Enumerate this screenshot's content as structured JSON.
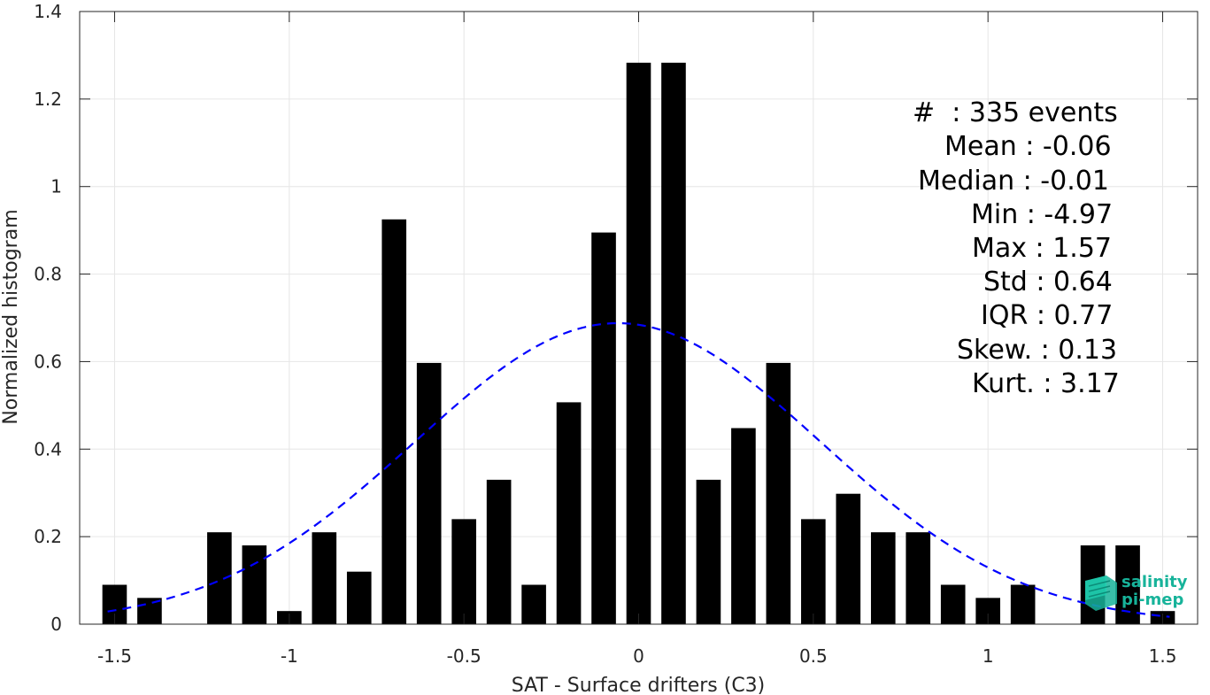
{
  "chart_data": {
    "type": "bar",
    "xlabel": "SAT - Surface drifters (C3)",
    "ylabel": "Normalized histogram",
    "xlim": [
      -1.6,
      1.6
    ],
    "ylim": [
      0,
      1.4
    ],
    "xticks": [
      "-1.5",
      "-1",
      "-0.5",
      "0",
      "0.5",
      "1",
      "1.5"
    ],
    "xtick_values": [
      -1.5,
      -1,
      -0.5,
      0,
      0.5,
      1,
      1.5
    ],
    "yticks": [
      "0",
      "0.2",
      "0.4",
      "0.6",
      "0.8",
      "1",
      "1.2",
      "1.4"
    ],
    "ytick_values": [
      0,
      0.2,
      0.4,
      0.6,
      0.8,
      1.0,
      1.2,
      1.4
    ],
    "grid": true,
    "bar_color": "#000000",
    "bars": [
      {
        "x": -1.5,
        "value": 0.09
      },
      {
        "x": -1.4,
        "value": 0.06
      },
      {
        "x": -1.3,
        "value": 0.0
      },
      {
        "x": -1.2,
        "value": 0.21
      },
      {
        "x": -1.1,
        "value": 0.18
      },
      {
        "x": -1.0,
        "value": 0.03
      },
      {
        "x": -0.9,
        "value": 0.21
      },
      {
        "x": -0.8,
        "value": 0.12
      },
      {
        "x": -0.7,
        "value": 0.925
      },
      {
        "x": -0.6,
        "value": 0.597
      },
      {
        "x": -0.5,
        "value": 0.24
      },
      {
        "x": -0.4,
        "value": 0.33
      },
      {
        "x": -0.3,
        "value": 0.09
      },
      {
        "x": -0.2,
        "value": 0.507
      },
      {
        "x": -0.1,
        "value": 0.895
      },
      {
        "x": 0.0,
        "value": 1.283
      },
      {
        "x": 0.1,
        "value": 1.283
      },
      {
        "x": 0.2,
        "value": 0.33
      },
      {
        "x": 0.3,
        "value": 0.448
      },
      {
        "x": 0.4,
        "value": 0.597
      },
      {
        "x": 0.5,
        "value": 0.24
      },
      {
        "x": 0.6,
        "value": 0.298
      },
      {
        "x": 0.7,
        "value": 0.21
      },
      {
        "x": 0.8,
        "value": 0.21
      },
      {
        "x": 0.9,
        "value": 0.09
      },
      {
        "x": 1.0,
        "value": 0.06
      },
      {
        "x": 1.1,
        "value": 0.09
      },
      {
        "x": 1.2,
        "value": 0.0
      },
      {
        "x": 1.3,
        "value": 0.18
      },
      {
        "x": 1.4,
        "value": 0.18
      },
      {
        "x": 1.5,
        "value": 0.03
      }
    ],
    "fit_curve": {
      "style": "dashed",
      "color": "#0000ff",
      "mean": -0.06,
      "std": 0.58,
      "x_range": [
        -1.52,
        1.52
      ]
    }
  },
  "stats": {
    "events": "#  : 335 events",
    "mean": "Mean : -0.06",
    "median": "Median : -0.01",
    "min": "Min : -4.97",
    "max": "Max : 1.57",
    "std": "Std : 0.64",
    "iqr": "IQR : 0.77",
    "skew": "Skew. : 0.13",
    "kurt": "Kurt. : 3.17"
  },
  "logo": {
    "line1": "salinity",
    "line2": "pi-mep",
    "color": "#17b39a"
  }
}
